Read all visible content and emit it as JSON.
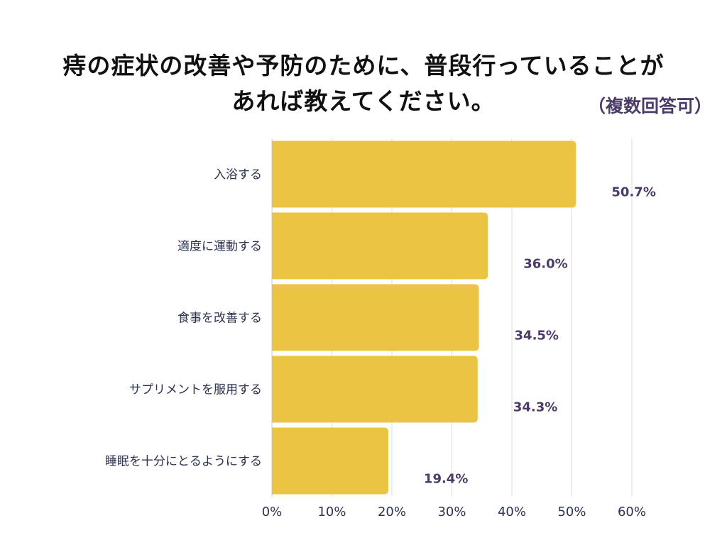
{
  "chart_data": {
    "type": "bar",
    "orientation": "horizontal",
    "title": "痔の症状の改善や予防のために、普段行っていることがあれば教えてください。",
    "title_lines": [
      "痔の症状の改善や予防のために、普段行っていることが",
      "あれば教えてください。"
    ],
    "subtitle": "（複数回答可）",
    "categories": [
      "入浴する",
      "適度に運動する",
      "食事を改善する",
      "サプリメントを服用する",
      "睡眠を十分にとるようにする"
    ],
    "values": [
      50.7,
      36.0,
      34.5,
      34.3,
      19.4
    ],
    "value_labels": [
      "50.7%",
      "36.0%",
      "34.5%",
      "34.3%",
      "19.4%"
    ],
    "xlim": [
      0,
      60
    ],
    "xticks": [
      0,
      10,
      20,
      30,
      40,
      50,
      60
    ],
    "xtick_labels": [
      "0%",
      "10%",
      "20%",
      "30%",
      "40%",
      "50%",
      "60%"
    ],
    "xlabel": "",
    "ylabel": "",
    "grid": true,
    "colors": {
      "bar": "#ecc443",
      "label": "#4b3b66",
      "grid": "#dcdce6"
    }
  }
}
